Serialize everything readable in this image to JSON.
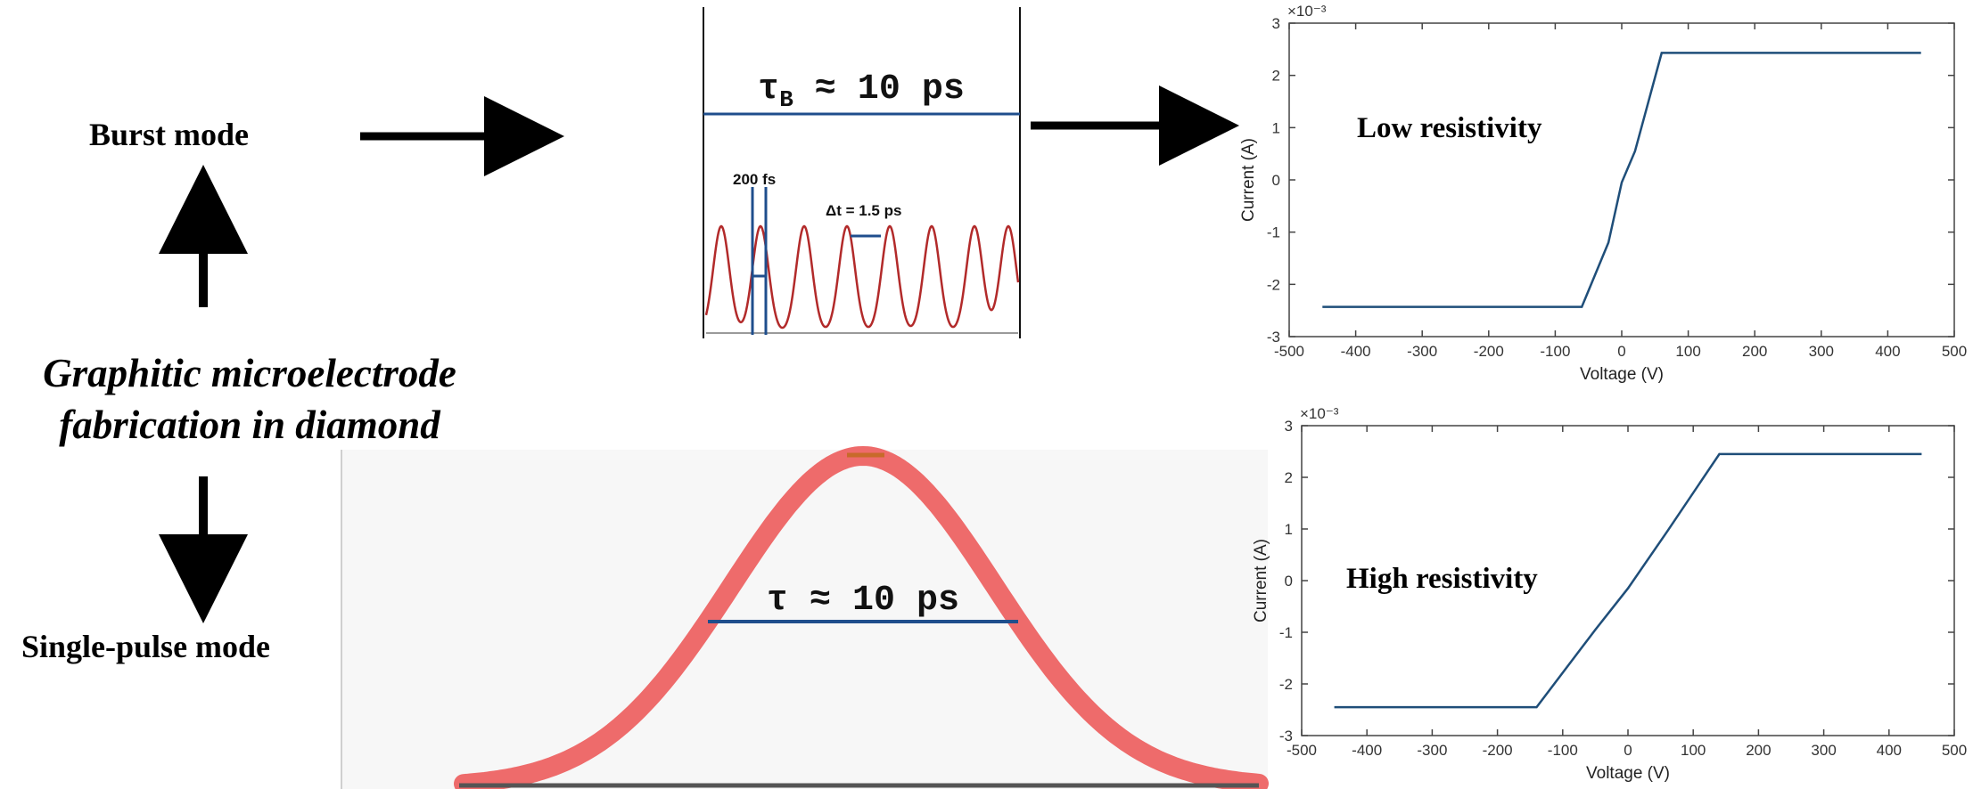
{
  "figure": {
    "burst_label": "Burst mode",
    "single_label": "Single-pulse mode",
    "center_title_line1": "Graphitic microelectrode",
    "center_title_line2": "fabrication in diamond",
    "burst_envelope_sym": "τ",
    "burst_envelope_sub": "B",
    "burst_envelope_rest": " ≈ 10 ps",
    "pulse_width_label": "200 fs",
    "pulse_spacing_label": "Δt = 1.5 ps",
    "single_duration_label": "τ  ≈ 10 ps",
    "colors": {
      "pulse": "#b22a2a",
      "gaussian": "#ee6b6b",
      "marker": "#1f4e8c",
      "iv_line": "#1f4e79"
    }
  },
  "chart_data": [
    {
      "type": "line",
      "annotation": "Low resistivity",
      "xlabel": "Voltage (V)",
      "ylabel": "Current (A)",
      "y_exponent": "×10⁻³",
      "xlim": [
        -500,
        500
      ],
      "ylim": [
        -3,
        3
      ],
      "xticks": [
        -500,
        -400,
        -300,
        -200,
        -100,
        0,
        100,
        200,
        300,
        400,
        500
      ],
      "yticks": [
        3,
        2,
        1,
        0,
        -1,
        -2,
        -3
      ],
      "x": [
        -450,
        -60,
        -20,
        0,
        20,
        60,
        450
      ],
      "y": [
        -2.43,
        -2.43,
        -1.2,
        -0.05,
        0.55,
        2.43,
        2.43
      ]
    },
    {
      "type": "line",
      "annotation": "High resistivity",
      "xlabel": "Voltage (V)",
      "ylabel": "Current (A)",
      "y_exponent": "×10⁻³",
      "xlim": [
        -500,
        500
      ],
      "ylim": [
        -3,
        3
      ],
      "xticks": [
        -500,
        -400,
        -300,
        -200,
        -100,
        0,
        100,
        200,
        300,
        400,
        500
      ],
      "yticks": [
        3,
        2,
        1,
        0,
        -1,
        -2,
        -3
      ],
      "x": [
        -450,
        -140,
        -50,
        0,
        60,
        140,
        450
      ],
      "y": [
        -2.45,
        -2.45,
        -0.95,
        -0.15,
        0.95,
        2.45,
        2.45
      ]
    }
  ]
}
